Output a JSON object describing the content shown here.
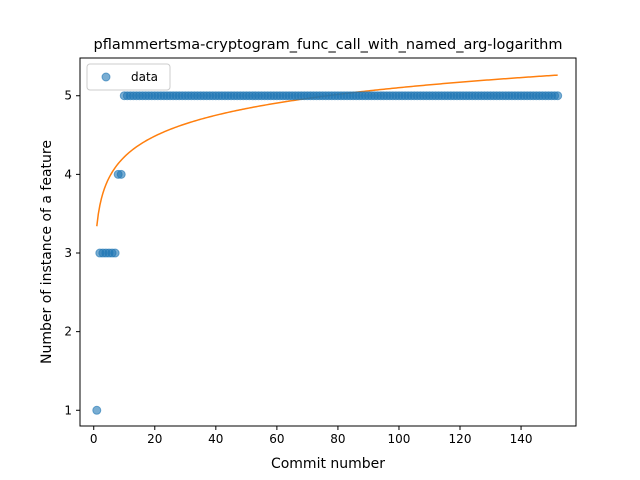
{
  "chart_data": {
    "type": "scatter",
    "title": "pflammertsma-cryptogram_func_call_with_named_arg-logarithm",
    "xlabel": "Commit number",
    "ylabel": "Number of instance of a feature",
    "xlim": [
      -4.5,
      158
    ],
    "ylim": [
      0.8,
      5.48
    ],
    "xticks": [
      0,
      20,
      40,
      60,
      80,
      100,
      120,
      140
    ],
    "yticks": [
      1,
      2,
      3,
      4,
      5
    ],
    "grid": false,
    "legend": {
      "placement": "top-left",
      "entries": [
        "data"
      ]
    },
    "colors": {
      "data": "#1f77b4",
      "fit": "#ff7f0e"
    },
    "series": [
      {
        "name": "data",
        "kind": "scatter",
        "points": [
          [
            1,
            1
          ],
          [
            2,
            3
          ],
          [
            3,
            3
          ],
          [
            4,
            3
          ],
          [
            5,
            3
          ],
          [
            6,
            3
          ],
          [
            7,
            3
          ],
          [
            8,
            4
          ],
          [
            9,
            4
          ]
        ],
        "constant_run": {
          "x_start": 10,
          "x_end": 152,
          "y": 5
        }
      },
      {
        "kind": "line",
        "fit": {
          "a": 3.34,
          "b": 0.3827,
          "x_start": 1,
          "x_end": 152
        }
      }
    ]
  }
}
